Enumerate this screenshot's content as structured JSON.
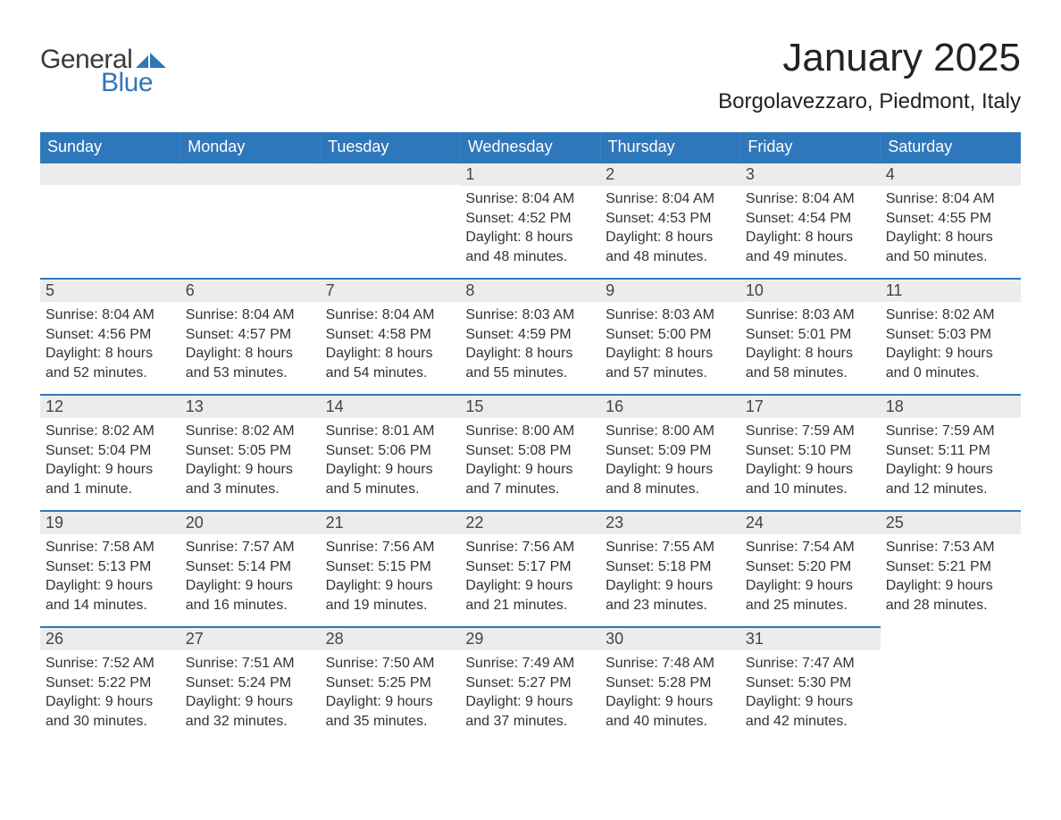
{
  "logo": {
    "text1": "General",
    "text2": "Blue",
    "icon_color1": "#2f77bb",
    "icon_color2": "#4a8fc8"
  },
  "title": "January 2025",
  "location": "Borgolavezzaro, Piedmont, Italy",
  "colors": {
    "header_bg": "#2f77bb",
    "header_text": "#ffffff",
    "daynum_bg": "#ececec",
    "row_border": "#2f77bb",
    "page_bg": "#ffffff",
    "text": "#333333"
  },
  "typography": {
    "title_fontsize": 44,
    "location_fontsize": 24,
    "header_fontsize": 18,
    "daynum_fontsize": 18,
    "body_fontsize": 16,
    "font_family": "Arial"
  },
  "layout": {
    "columns": 7,
    "col_width_pct": 14.28
  },
  "weekdays": [
    "Sunday",
    "Monday",
    "Tuesday",
    "Wednesday",
    "Thursday",
    "Friday",
    "Saturday"
  ],
  "weeks": [
    [
      {
        "empty": true
      },
      {
        "empty": true
      },
      {
        "empty": true
      },
      {
        "n": "1",
        "sr": "Sunrise: 8:04 AM",
        "ss": "Sunset: 4:52 PM",
        "d1": "Daylight: 8 hours",
        "d2": "and 48 minutes."
      },
      {
        "n": "2",
        "sr": "Sunrise: 8:04 AM",
        "ss": "Sunset: 4:53 PM",
        "d1": "Daylight: 8 hours",
        "d2": "and 48 minutes."
      },
      {
        "n": "3",
        "sr": "Sunrise: 8:04 AM",
        "ss": "Sunset: 4:54 PM",
        "d1": "Daylight: 8 hours",
        "d2": "and 49 minutes."
      },
      {
        "n": "4",
        "sr": "Sunrise: 8:04 AM",
        "ss": "Sunset: 4:55 PM",
        "d1": "Daylight: 8 hours",
        "d2": "and 50 minutes."
      }
    ],
    [
      {
        "n": "5",
        "sr": "Sunrise: 8:04 AM",
        "ss": "Sunset: 4:56 PM",
        "d1": "Daylight: 8 hours",
        "d2": "and 52 minutes."
      },
      {
        "n": "6",
        "sr": "Sunrise: 8:04 AM",
        "ss": "Sunset: 4:57 PM",
        "d1": "Daylight: 8 hours",
        "d2": "and 53 minutes."
      },
      {
        "n": "7",
        "sr": "Sunrise: 8:04 AM",
        "ss": "Sunset: 4:58 PM",
        "d1": "Daylight: 8 hours",
        "d2": "and 54 minutes."
      },
      {
        "n": "8",
        "sr": "Sunrise: 8:03 AM",
        "ss": "Sunset: 4:59 PM",
        "d1": "Daylight: 8 hours",
        "d2": "and 55 minutes."
      },
      {
        "n": "9",
        "sr": "Sunrise: 8:03 AM",
        "ss": "Sunset: 5:00 PM",
        "d1": "Daylight: 8 hours",
        "d2": "and 57 minutes."
      },
      {
        "n": "10",
        "sr": "Sunrise: 8:03 AM",
        "ss": "Sunset: 5:01 PM",
        "d1": "Daylight: 8 hours",
        "d2": "and 58 minutes."
      },
      {
        "n": "11",
        "sr": "Sunrise: 8:02 AM",
        "ss": "Sunset: 5:03 PM",
        "d1": "Daylight: 9 hours",
        "d2": "and 0 minutes."
      }
    ],
    [
      {
        "n": "12",
        "sr": "Sunrise: 8:02 AM",
        "ss": "Sunset: 5:04 PM",
        "d1": "Daylight: 9 hours",
        "d2": "and 1 minute."
      },
      {
        "n": "13",
        "sr": "Sunrise: 8:02 AM",
        "ss": "Sunset: 5:05 PM",
        "d1": "Daylight: 9 hours",
        "d2": "and 3 minutes."
      },
      {
        "n": "14",
        "sr": "Sunrise: 8:01 AM",
        "ss": "Sunset: 5:06 PM",
        "d1": "Daylight: 9 hours",
        "d2": "and 5 minutes."
      },
      {
        "n": "15",
        "sr": "Sunrise: 8:00 AM",
        "ss": "Sunset: 5:08 PM",
        "d1": "Daylight: 9 hours",
        "d2": "and 7 minutes."
      },
      {
        "n": "16",
        "sr": "Sunrise: 8:00 AM",
        "ss": "Sunset: 5:09 PM",
        "d1": "Daylight: 9 hours",
        "d2": "and 8 minutes."
      },
      {
        "n": "17",
        "sr": "Sunrise: 7:59 AM",
        "ss": "Sunset: 5:10 PM",
        "d1": "Daylight: 9 hours",
        "d2": "and 10 minutes."
      },
      {
        "n": "18",
        "sr": "Sunrise: 7:59 AM",
        "ss": "Sunset: 5:11 PM",
        "d1": "Daylight: 9 hours",
        "d2": "and 12 minutes."
      }
    ],
    [
      {
        "n": "19",
        "sr": "Sunrise: 7:58 AM",
        "ss": "Sunset: 5:13 PM",
        "d1": "Daylight: 9 hours",
        "d2": "and 14 minutes."
      },
      {
        "n": "20",
        "sr": "Sunrise: 7:57 AM",
        "ss": "Sunset: 5:14 PM",
        "d1": "Daylight: 9 hours",
        "d2": "and 16 minutes."
      },
      {
        "n": "21",
        "sr": "Sunrise: 7:56 AM",
        "ss": "Sunset: 5:15 PM",
        "d1": "Daylight: 9 hours",
        "d2": "and 19 minutes."
      },
      {
        "n": "22",
        "sr": "Sunrise: 7:56 AM",
        "ss": "Sunset: 5:17 PM",
        "d1": "Daylight: 9 hours",
        "d2": "and 21 minutes."
      },
      {
        "n": "23",
        "sr": "Sunrise: 7:55 AM",
        "ss": "Sunset: 5:18 PM",
        "d1": "Daylight: 9 hours",
        "d2": "and 23 minutes."
      },
      {
        "n": "24",
        "sr": "Sunrise: 7:54 AM",
        "ss": "Sunset: 5:20 PM",
        "d1": "Daylight: 9 hours",
        "d2": "and 25 minutes."
      },
      {
        "n": "25",
        "sr": "Sunrise: 7:53 AM",
        "ss": "Sunset: 5:21 PM",
        "d1": "Daylight: 9 hours",
        "d2": "and 28 minutes."
      }
    ],
    [
      {
        "n": "26",
        "sr": "Sunrise: 7:52 AM",
        "ss": "Sunset: 5:22 PM",
        "d1": "Daylight: 9 hours",
        "d2": "and 30 minutes."
      },
      {
        "n": "27",
        "sr": "Sunrise: 7:51 AM",
        "ss": "Sunset: 5:24 PM",
        "d1": "Daylight: 9 hours",
        "d2": "and 32 minutes."
      },
      {
        "n": "28",
        "sr": "Sunrise: 7:50 AM",
        "ss": "Sunset: 5:25 PM",
        "d1": "Daylight: 9 hours",
        "d2": "and 35 minutes."
      },
      {
        "n": "29",
        "sr": "Sunrise: 7:49 AM",
        "ss": "Sunset: 5:27 PM",
        "d1": "Daylight: 9 hours",
        "d2": "and 37 minutes."
      },
      {
        "n": "30",
        "sr": "Sunrise: 7:48 AM",
        "ss": "Sunset: 5:28 PM",
        "d1": "Daylight: 9 hours",
        "d2": "and 40 minutes."
      },
      {
        "n": "31",
        "sr": "Sunrise: 7:47 AM",
        "ss": "Sunset: 5:30 PM",
        "d1": "Daylight: 9 hours",
        "d2": "and 42 minutes."
      },
      {
        "empty": true,
        "noborder": true
      }
    ]
  ]
}
